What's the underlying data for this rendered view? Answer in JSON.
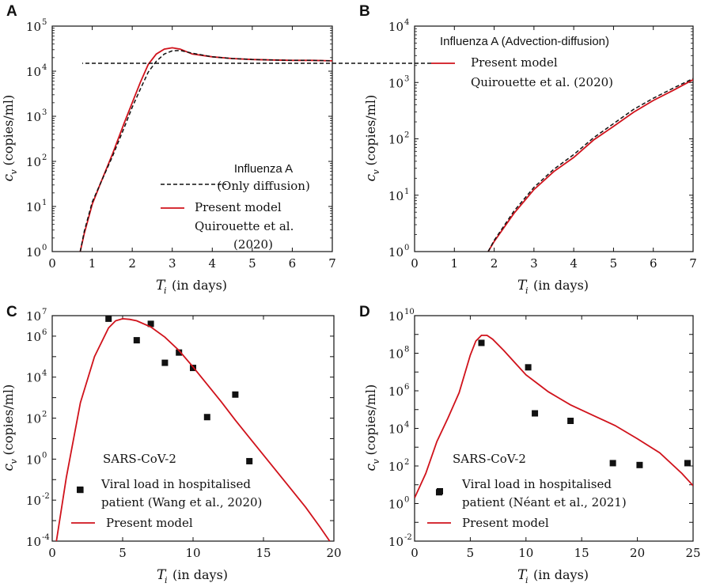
{
  "chart_data": [
    {
      "panel": "A",
      "type": "line",
      "yscale": "log",
      "xlim": [
        0,
        7
      ],
      "ylim_exp": [
        0,
        5
      ],
      "xticks": [
        0,
        1,
        2,
        3,
        4,
        5,
        6,
        7
      ],
      "xlabel_sym": "T",
      "xlabel_sub": "i",
      "xlabel_text": "(in days)",
      "ylabel_sym": "c",
      "ylabel_sub": "v",
      "ylabel_text": "(copies/ml)",
      "legend_title_lines": [
        "Influenza A",
        "(Only diffusion)"
      ],
      "series": [
        {
          "name": "Present model",
          "style": "solid",
          "color": "#d0121b",
          "x": [
            0.7,
            0.8,
            1.0,
            1.2,
            1.5,
            1.8,
            2.0,
            2.2,
            2.4,
            2.6,
            2.8,
            3.0,
            3.2,
            3.5,
            4.0,
            4.5,
            5.0,
            5.5,
            6.0,
            6.5,
            7.0
          ],
          "log10_y": [
            0.0,
            0.4,
            1.05,
            1.5,
            2.15,
            2.85,
            3.3,
            3.75,
            4.15,
            4.38,
            4.49,
            4.52,
            4.49,
            4.38,
            4.32,
            4.28,
            4.26,
            4.25,
            4.24,
            4.24,
            4.23
          ]
        },
        {
          "name": "Quirouette et al.",
          "name_line2": "(2020)",
          "style": "dashed",
          "color": "#111111",
          "x": [
            0.7,
            0.8,
            1.0,
            1.2,
            1.5,
            1.8,
            2.0,
            2.2,
            2.4,
            2.6,
            2.8,
            3.0,
            3.2,
            3.5,
            4.0,
            4.5,
            5.0,
            5.5,
            6.0,
            6.5,
            7.0
          ],
          "log10_y": [
            0.0,
            0.45,
            1.1,
            1.5,
            2.1,
            2.75,
            3.2,
            3.6,
            3.98,
            4.22,
            4.38,
            4.45,
            4.46,
            4.4,
            4.32,
            4.28,
            4.26,
            4.25,
            4.24,
            4.24,
            4.23
          ]
        }
      ]
    },
    {
      "panel": "B",
      "type": "line",
      "yscale": "log",
      "xlim": [
        0,
        7
      ],
      "ylim_exp": [
        0,
        4
      ],
      "xticks": [
        0,
        1,
        2,
        3,
        4,
        5,
        6,
        7
      ],
      "xlabel_sym": "T",
      "xlabel_sub": "i",
      "xlabel_text": "(in days)",
      "ylabel_sym": "c",
      "ylabel_sub": "v",
      "ylabel_text": "(copies/ml)",
      "legend_title_lines": [
        "Influenza A (Advection-diffusion)"
      ],
      "series": [
        {
          "name": "Present model",
          "style": "solid",
          "color": "#d0121b",
          "x": [
            1.85,
            2.0,
            2.5,
            3.0,
            3.5,
            4.0,
            4.5,
            5.0,
            5.5,
            6.0,
            6.5,
            7.0
          ],
          "log10_y": [
            0.0,
            0.18,
            0.68,
            1.1,
            1.42,
            1.67,
            1.98,
            2.22,
            2.47,
            2.68,
            2.86,
            3.05
          ]
        },
        {
          "name": "Quirouette et al. (2020)",
          "style": "dashed",
          "color": "#111111",
          "x": [
            1.85,
            2.0,
            2.5,
            3.0,
            3.5,
            4.0,
            4.5,
            5.0,
            5.5,
            6.0,
            6.5,
            7.0
          ],
          "log10_y": [
            0.0,
            0.2,
            0.72,
            1.14,
            1.46,
            1.72,
            2.02,
            2.27,
            2.52,
            2.72,
            2.9,
            3.07
          ]
        }
      ]
    },
    {
      "panel": "C",
      "type": "line+scatter",
      "yscale": "log",
      "xlim": [
        0,
        20
      ],
      "ylim_exp": [
        -4,
        7
      ],
      "yticks_exp": [
        -4,
        -2,
        0,
        2,
        4,
        6,
        7
      ],
      "xticks": [
        0,
        5,
        10,
        15,
        20
      ],
      "xlabel_sym": "T",
      "xlabel_sub": "i",
      "xlabel_text": "(in days)",
      "ylabel_sym": "c",
      "ylabel_sub": "v",
      "ylabel_text": "(copies/ml)",
      "annotation": "SARS-CoV-2",
      "series": [
        {
          "name": "Viral load in hospitalised",
          "name_line2": "patient (Wang et al., 2020)",
          "style": "markers",
          "color": "#111111",
          "x": [
            2,
            4,
            6,
            7,
            8,
            9,
            10,
            11,
            13,
            14
          ],
          "log10_y": [
            -1.5,
            6.85,
            5.8,
            6.6,
            4.7,
            5.2,
            4.45,
            2.05,
            3.15,
            -0.1
          ]
        },
        {
          "name": "Present model",
          "style": "solid",
          "color": "#d0121b",
          "x": [
            0.3,
            1.0,
            2.0,
            3.0,
            4.0,
            4.5,
            5.0,
            5.5,
            6.0,
            7.0,
            8.0,
            9.0,
            10.0,
            11.0,
            12.0,
            13.0,
            14.0,
            15.0,
            16.0,
            17.0,
            18.0,
            19.0,
            19.7
          ],
          "log10_y": [
            -4.0,
            -0.9,
            2.75,
            5.0,
            6.4,
            6.75,
            6.85,
            6.82,
            6.75,
            6.45,
            5.95,
            5.3,
            4.5,
            3.65,
            2.8,
            1.9,
            1.05,
            0.2,
            -0.65,
            -1.5,
            -2.35,
            -3.3,
            -4.0
          ]
        }
      ]
    },
    {
      "panel": "D",
      "type": "line+scatter",
      "yscale": "log",
      "xlim": [
        0,
        25
      ],
      "ylim_exp": [
        -2,
        10
      ],
      "yticks_exp": [
        -2,
        0,
        2,
        4,
        6,
        8,
        10
      ],
      "xticks": [
        0,
        5,
        10,
        15,
        20,
        25
      ],
      "xlabel_sym": "T",
      "xlabel_sub": "i",
      "xlabel_text": "(in days)",
      "ylabel_sym": "c",
      "ylabel_sub": "v",
      "ylabel_text": "(copies/ml)",
      "annotation": "SARS-CoV-2",
      "series": [
        {
          "name": "Viral load in hospitalised",
          "name_line2": "patient (Néant et al., 2021)",
          "style": "markers",
          "color": "#111111",
          "x": [
            2.2,
            6.0,
            10.2,
            10.8,
            14.0,
            17.8,
            20.2,
            24.5
          ],
          "log10_y": [
            0.6,
            8.55,
            7.25,
            4.8,
            4.4,
            2.15,
            2.05,
            2.15
          ]
        },
        {
          "name": "Present model",
          "style": "solid",
          "color": "#d0121b",
          "x": [
            0.0,
            1.0,
            2.0,
            3.0,
            4.0,
            5.0,
            5.5,
            6.0,
            6.5,
            7.0,
            8.0,
            9.0,
            10.0,
            11.0,
            12.0,
            13.0,
            14.0,
            16.0,
            18.0,
            20.0,
            22.0,
            24.0,
            25.0
          ],
          "log10_y": [
            0.3,
            1.6,
            3.3,
            4.55,
            5.9,
            7.9,
            8.65,
            8.95,
            8.95,
            8.75,
            8.15,
            7.5,
            6.85,
            6.4,
            5.95,
            5.6,
            5.25,
            4.7,
            4.15,
            3.45,
            2.7,
            1.6,
            0.95
          ]
        }
      ]
    }
  ]
}
